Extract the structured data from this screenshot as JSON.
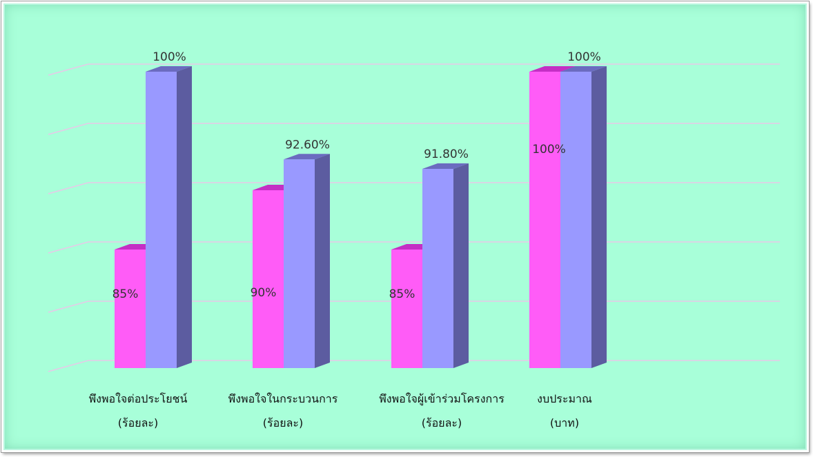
{
  "chart_data": {
    "type": "bar",
    "categories": [
      [
        "พึงพอใจต่อประโยชน์",
        "(ร้อยละ)"
      ],
      [
        "พึงพอใจในกระบวนการ",
        "(ร้อยละ)"
      ],
      [
        "พึงพอใจผู้เข้าร่วมโครงการ",
        "(ร้อยละ)"
      ],
      [
        "งบประมาณ",
        "(บาท)"
      ]
    ],
    "series": [
      {
        "values": [
          85,
          90,
          85,
          100
        ],
        "labels": [
          "85%",
          "90%",
          "85%",
          "100%"
        ]
      },
      {
        "values": [
          100,
          92.6,
          91.8,
          100
        ],
        "labels": [
          "100%",
          "92.60%",
          "91.80%",
          "100%"
        ]
      }
    ],
    "ylim": [
      75,
      100
    ],
    "grid": true,
    "style": "3d-column",
    "colors": {
      "background": "#a8ffd9",
      "series": [
        {
          "front": "#ff5cf7",
          "top": "#c42fc4",
          "side": "#b03bb0"
        },
        {
          "front": "#9999ff",
          "top": "#6b6bc0",
          "side": "#5c5ca0"
        }
      ],
      "grid": "#e8c8e8"
    }
  }
}
